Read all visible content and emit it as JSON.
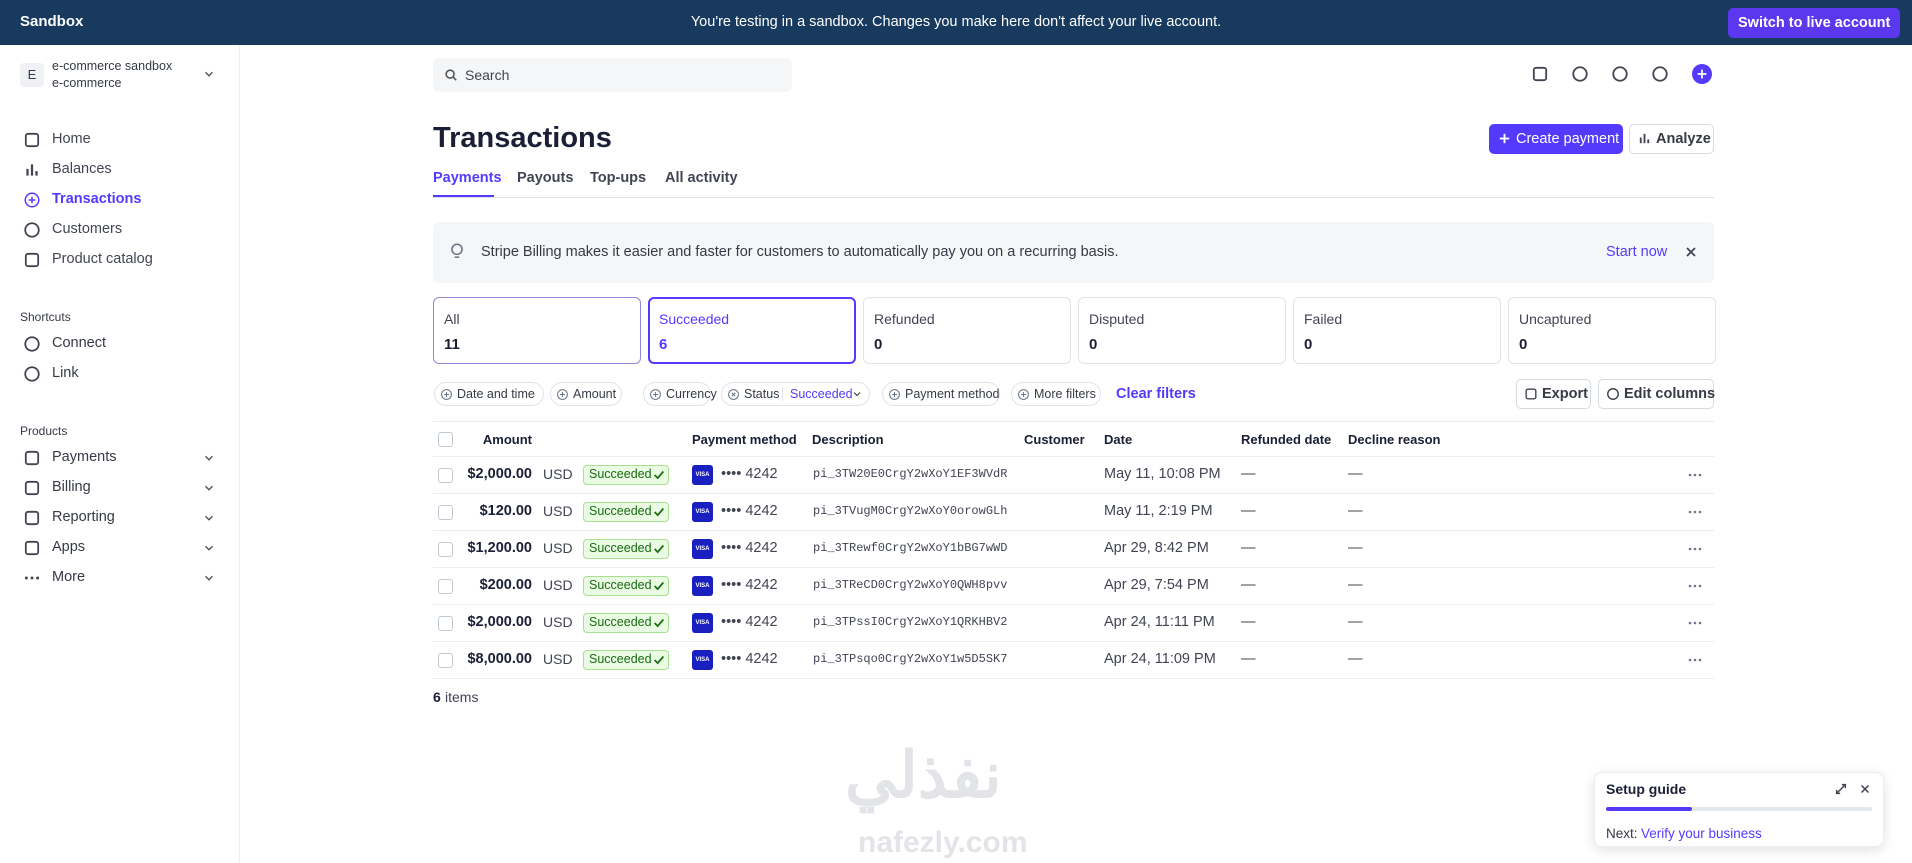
{
  "banner": {
    "label": "Sandbox",
    "message": "You're testing in a sandbox. Changes you make here don't affect your live account.",
    "button": "Switch to live account"
  },
  "account": {
    "initial": "E",
    "name": "e-commerce sandbox",
    "subtitle": "e-commerce"
  },
  "nav": {
    "items": [
      "Home",
      "Balances",
      "Transactions",
      "Customers",
      "Product catalog"
    ],
    "active": 2
  },
  "shortcuts": {
    "title": "Shortcuts",
    "items": [
      "Connect",
      "Link"
    ]
  },
  "products": {
    "title": "Products",
    "items": [
      "Payments",
      "Billing",
      "Reporting",
      "Apps",
      "More"
    ]
  },
  "search": {
    "placeholder": "Search"
  },
  "header": {
    "title": "Transactions",
    "create_button": "Create payment",
    "analyze_button": "Analyze"
  },
  "tabs": {
    "items": [
      "Payments",
      "Payouts",
      "Top-ups",
      "All activity"
    ],
    "active": 0
  },
  "promo": {
    "text": "Stripe Billing makes it easier and faster for customers to automatically pay you on a recurring basis.",
    "action": "Start now"
  },
  "status_cards": {
    "selected": 1,
    "items": [
      {
        "label": "All",
        "count": 11
      },
      {
        "label": "Succeeded",
        "count": 6
      },
      {
        "label": "Refunded",
        "count": 0
      },
      {
        "label": "Disputed",
        "count": 0
      },
      {
        "label": "Failed",
        "count": 0
      },
      {
        "label": "Uncaptured",
        "count": 0
      }
    ]
  },
  "filters": {
    "date": "Date and time",
    "amount": "Amount",
    "currency": "Currency",
    "status": "Status",
    "status_value": "Succeeded",
    "payment_method": "Payment method",
    "more": "More filters",
    "clear": "Clear filters",
    "export": "Export",
    "edit_columns": "Edit columns"
  },
  "table": {
    "columns": [
      "Amount",
      "Payment method",
      "Description",
      "Customer",
      "Date",
      "Refunded date",
      "Decline reason"
    ],
    "rows": [
      {
        "amount": "$2,000.00",
        "currency": "USD",
        "status": "Succeeded",
        "brand": "VISA",
        "card": "•••• 4242",
        "description": "pi_3TW20E0CrgY2wXoY1EF3WVdR",
        "date": "May 11, 10:08 PM",
        "refunded": "—",
        "decline": "—"
      },
      {
        "amount": "$120.00",
        "currency": "USD",
        "status": "Succeeded",
        "brand": "VISA",
        "card": "•••• 4242",
        "description": "pi_3TVugM0CrgY2wXoY0orowGLh",
        "date": "May 11, 2:19 PM",
        "refunded": "—",
        "decline": "—"
      },
      {
        "amount": "$1,200.00",
        "currency": "USD",
        "status": "Succeeded",
        "brand": "VISA",
        "card": "•••• 4242",
        "description": "pi_3TRewf0CrgY2wXoY1bBG7wWD",
        "date": "Apr 29, 8:42 PM",
        "refunded": "—",
        "decline": "—"
      },
      {
        "amount": "$200.00",
        "currency": "USD",
        "status": "Succeeded",
        "brand": "VISA",
        "card": "•••• 4242",
        "description": "pi_3TReCD0CrgY2wXoY0QWH8pvv",
        "date": "Apr 29, 7:54 PM",
        "refunded": "—",
        "decline": "—"
      },
      {
        "amount": "$2,000.00",
        "currency": "USD",
        "status": "Succeeded",
        "brand": "VISA",
        "card": "•••• 4242",
        "description": "pi_3TPssI0CrgY2wXoY1QRKHBV2",
        "date": "Apr 24, 11:11 PM",
        "refunded": "—",
        "decline": "—"
      },
      {
        "amount": "$8,000.00",
        "currency": "USD",
        "status": "Succeeded",
        "brand": "VISA",
        "card": "•••• 4242",
        "description": "pi_3TPsqo0CrgY2wXoY1w5D5SK7",
        "date": "Apr 24, 11:09 PM",
        "refunded": "—",
        "decline": "—"
      }
    ]
  },
  "footer": {
    "count": 6,
    "label": "items"
  },
  "setup_guide": {
    "title": "Setup guide",
    "next": "Next:",
    "link": "Verify your business"
  },
  "watermark": {
    "arabic": "نفذلي",
    "latin": "nafezly.com"
  }
}
